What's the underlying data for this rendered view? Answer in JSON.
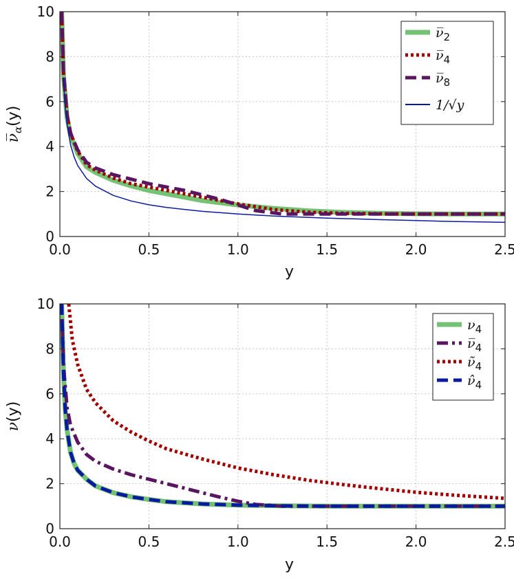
{
  "chart_data": [
    {
      "type": "line",
      "xlabel": "y",
      "ylabel": "ν̅α(y)",
      "ylabel_main": "ν̅",
      "ylabel_sub": "α",
      "ylabel_tail": "(y)",
      "xlim": [
        0,
        2.5
      ],
      "ylim": [
        0,
        10
      ],
      "xticks": [
        "0.0",
        "0.5",
        "1.0",
        "1.5",
        "2.0",
        "2.5"
      ],
      "yticks": [
        "0",
        "2",
        "4",
        "6",
        "8",
        "10"
      ],
      "legend_position": "top-right",
      "series": [
        {
          "name": "ν̅",
          "sub": "2",
          "color": "#74c274",
          "style": "solid",
          "width": 7,
          "x": [
            0.01,
            0.02,
            0.04,
            0.06,
            0.1,
            0.15,
            0.2,
            0.3,
            0.4,
            0.5,
            0.6,
            0.7,
            0.8,
            0.9,
            1.0,
            1.2,
            1.4,
            1.6,
            1.8,
            2.0,
            2.2,
            2.5
          ],
          "values": [
            10.0,
            7.2,
            5.3,
            4.5,
            3.7,
            3.1,
            2.85,
            2.5,
            2.25,
            2.05,
            1.9,
            1.75,
            1.6,
            1.5,
            1.4,
            1.25,
            1.14,
            1.07,
            1.03,
            1.01,
            1.0,
            1.0
          ]
        },
        {
          "name": "ν̅",
          "sub": "4",
          "color": "#a00000",
          "style": "dotted",
          "width": 5,
          "x": [
            0.01,
            0.02,
            0.04,
            0.06,
            0.1,
            0.15,
            0.2,
            0.3,
            0.4,
            0.5,
            0.6,
            0.7,
            0.8,
            0.9,
            1.0,
            1.2,
            1.4,
            1.6,
            1.8,
            2.0,
            2.2,
            2.5
          ],
          "values": [
            10.0,
            7.3,
            5.4,
            4.6,
            3.8,
            3.2,
            2.95,
            2.6,
            2.35,
            2.2,
            2.05,
            1.9,
            1.75,
            1.6,
            1.45,
            1.2,
            1.08,
            1.03,
            1.01,
            1.0,
            1.0,
            1.0
          ]
        },
        {
          "name": "ν̅",
          "sub": "8",
          "color": "#5a1560",
          "style": "dashed",
          "width": 5,
          "x": [
            0.01,
            0.02,
            0.04,
            0.06,
            0.1,
            0.15,
            0.2,
            0.3,
            0.4,
            0.5,
            0.6,
            0.7,
            0.8,
            0.9,
            1.0,
            1.1,
            1.25,
            1.4,
            1.6,
            2.0,
            2.5
          ],
          "values": [
            10.0,
            7.3,
            5.4,
            4.6,
            3.85,
            3.3,
            3.05,
            2.75,
            2.55,
            2.35,
            2.2,
            2.05,
            1.85,
            1.65,
            1.4,
            1.15,
            1.0,
            1.0,
            1.0,
            1.0,
            1.0
          ]
        },
        {
          "name": "1/√y",
          "sub": "",
          "color": "#0a1aa0",
          "style": "solid",
          "width": 1.5,
          "x": [
            0.02,
            0.03,
            0.04,
            0.06,
            0.08,
            0.1,
            0.15,
            0.2,
            0.3,
            0.4,
            0.5,
            0.6,
            0.8,
            1.0,
            1.2,
            1.5,
            1.8,
            2.0,
            2.2,
            2.5
          ],
          "values": [
            7.07,
            5.77,
            5.0,
            4.08,
            3.54,
            3.16,
            2.58,
            2.24,
            1.83,
            1.58,
            1.41,
            1.29,
            1.12,
            1.0,
            0.91,
            0.82,
            0.75,
            0.71,
            0.67,
            0.63
          ]
        }
      ]
    },
    {
      "type": "line",
      "xlabel": "y",
      "ylabel": "ν(y)",
      "ylabel_main": "ν",
      "ylabel_sub": "",
      "ylabel_tail": "(y)",
      "xlim": [
        0,
        2.5
      ],
      "ylim": [
        0,
        10
      ],
      "xticks": [
        "0.0",
        "0.5",
        "1.0",
        "1.5",
        "2.0",
        "2.5"
      ],
      "yticks": [
        "0",
        "2",
        "4",
        "6",
        "8",
        "10"
      ],
      "legend_position": "top-right",
      "series": [
        {
          "name": "ν",
          "sub": "4",
          "color": "#74c274",
          "style": "solid",
          "width": 7,
          "x": [
            0.01,
            0.02,
            0.03,
            0.04,
            0.06,
            0.08,
            0.1,
            0.15,
            0.2,
            0.3,
            0.4,
            0.5,
            0.6,
            0.8,
            1.0,
            1.2,
            1.5,
            2.0,
            2.5
          ],
          "values": [
            10.0,
            7.0,
            5.3,
            4.4,
            3.4,
            2.9,
            2.6,
            2.2,
            1.9,
            1.6,
            1.42,
            1.3,
            1.2,
            1.1,
            1.05,
            1.02,
            1.0,
            1.0,
            1.0
          ]
        },
        {
          "name": "ν̅",
          "sub": "4",
          "color": "#5a1560",
          "style": "dashdot",
          "width": 5,
          "x": [
            0.01,
            0.02,
            0.04,
            0.06,
            0.1,
            0.15,
            0.2,
            0.3,
            0.4,
            0.5,
            0.6,
            0.7,
            0.8,
            0.9,
            1.0,
            1.1,
            1.25,
            1.5,
            2.0,
            2.5
          ],
          "values": [
            10.0,
            7.3,
            5.4,
            4.6,
            3.85,
            3.3,
            3.0,
            2.65,
            2.4,
            2.2,
            2.0,
            1.8,
            1.6,
            1.4,
            1.22,
            1.08,
            1.0,
            1.0,
            1.0,
            1.0
          ]
        },
        {
          "name": "ν̃",
          "sub": "4",
          "color": "#a00000",
          "style": "dotted",
          "width": 5,
          "x": [
            0.05,
            0.07,
            0.1,
            0.15,
            0.2,
            0.3,
            0.4,
            0.5,
            0.6,
            0.8,
            1.0,
            1.2,
            1.4,
            1.6,
            1.8,
            2.0,
            2.2,
            2.5
          ],
          "values": [
            10.0,
            8.4,
            7.3,
            6.2,
            5.6,
            4.8,
            4.3,
            3.9,
            3.55,
            3.1,
            2.7,
            2.4,
            2.15,
            1.95,
            1.78,
            1.62,
            1.5,
            1.35
          ]
        },
        {
          "name": "ν̂",
          "sub": "4",
          "color": "#0a1aa0",
          "style": "dashed",
          "width": 5,
          "x": [
            0.01,
            0.02,
            0.03,
            0.04,
            0.06,
            0.08,
            0.1,
            0.15,
            0.2,
            0.3,
            0.4,
            0.5,
            0.6,
            0.8,
            1.0,
            1.2,
            1.5,
            2.0,
            2.5
          ],
          "values": [
            10.0,
            7.0,
            5.3,
            4.4,
            3.4,
            2.9,
            2.6,
            2.2,
            1.9,
            1.6,
            1.42,
            1.3,
            1.2,
            1.1,
            1.05,
            1.02,
            1.0,
            1.0,
            1.0
          ]
        }
      ]
    }
  ]
}
